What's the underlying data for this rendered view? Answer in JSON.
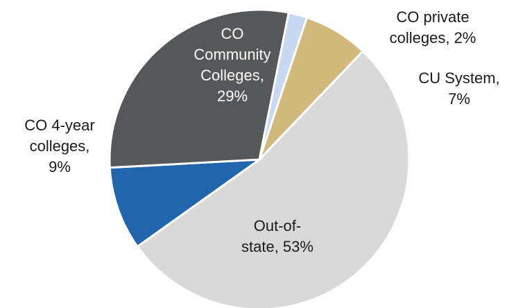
{
  "chart_data": {
    "type": "pie",
    "slices": [
      {
        "label_lines": [
          "CU System,",
          "7%"
        ],
        "category": "CU System",
        "value": 7,
        "color": "#d1b97b",
        "label_color": "#1a1a1a"
      },
      {
        "label_lines": [
          "Out-of-",
          "state, 53%"
        ],
        "category": "Out-of-state",
        "value": 53,
        "color": "#d9d9d9",
        "label_color": "#1a1a1a"
      },
      {
        "label_lines": [
          "CO 4-year",
          "colleges,",
          "9%"
        ],
        "category": "CO 4-year colleges",
        "value": 9,
        "color": "#2166ac",
        "label_color": "#1a1a1a"
      },
      {
        "label_lines": [
          "CO",
          "Community",
          "Colleges,",
          "29%"
        ],
        "category": "CO Community Colleges",
        "value": 29,
        "color": "#555759",
        "label_color": "#ffffff"
      },
      {
        "label_lines": [
          "CO private",
          "colleges, 2%"
        ],
        "category": "CO private colleges",
        "value": 2,
        "color": "#c6d9f1",
        "label_color": "#1a1a1a"
      }
    ]
  }
}
